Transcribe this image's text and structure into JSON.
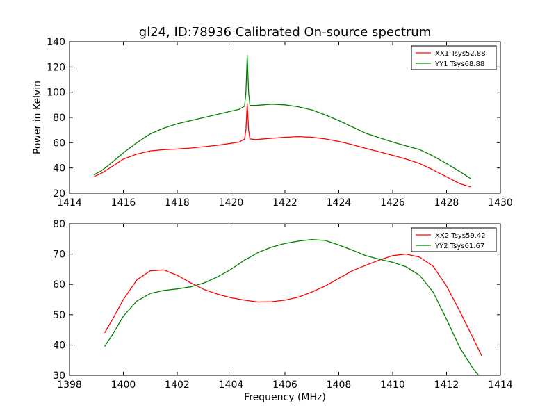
{
  "figure": {
    "title": "gl24, ID:78936 Calibrated On-source spectrum",
    "xlabel": "Frequency (MHz)"
  },
  "chart_data": [
    {
      "type": "line",
      "title": "gl24, ID:78936 Calibrated On-source spectrum",
      "xlabel": "",
      "ylabel": "Power in Kelvin",
      "xlim": [
        1414,
        1430
      ],
      "ylim": [
        20,
        140
      ],
      "x_ticks": [
        1414,
        1416,
        1418,
        1420,
        1422,
        1424,
        1426,
        1428,
        1430
      ],
      "y_ticks": [
        20,
        40,
        60,
        80,
        100,
        120,
        140
      ],
      "grid": false,
      "legend_position": "top-right",
      "series": [
        {
          "name": "XX1 Tsys52.88",
          "color": "#ff0000",
          "x": [
            1414.9,
            1415.2,
            1415.5,
            1416.0,
            1416.5,
            1417.0,
            1417.5,
            1418.0,
            1418.5,
            1419.0,
            1419.5,
            1420.0,
            1420.3,
            1420.5,
            1420.55,
            1420.6,
            1420.65,
            1420.7,
            1420.9,
            1421.5,
            1422.0,
            1422.5,
            1423.0,
            1423.5,
            1424.0,
            1424.5,
            1425.0,
            1425.5,
            1426.0,
            1426.5,
            1427.0,
            1427.5,
            1428.0,
            1428.5,
            1428.9
          ],
          "y": [
            33,
            36,
            40,
            47,
            51,
            53.5,
            54.5,
            55,
            55.8,
            56.8,
            58,
            59.5,
            60.5,
            63,
            70,
            91,
            70,
            63,
            62.5,
            63.5,
            64.3,
            64.8,
            64.3,
            63,
            61,
            58.5,
            55.5,
            52.8,
            50,
            47,
            43.5,
            38.5,
            33,
            27.5,
            25
          ]
        },
        {
          "name": "YY1 Tsys68.88",
          "color": "#008000",
          "x": [
            1414.9,
            1415.2,
            1415.5,
            1416.0,
            1416.5,
            1417.0,
            1417.5,
            1418.0,
            1418.5,
            1419.0,
            1419.5,
            1420.0,
            1420.3,
            1420.5,
            1420.55,
            1420.6,
            1420.65,
            1420.7,
            1420.9,
            1421.5,
            1422.0,
            1422.5,
            1423.0,
            1423.5,
            1424.0,
            1424.5,
            1425.0,
            1425.5,
            1426.0,
            1426.5,
            1427.0,
            1427.5,
            1428.0,
            1428.5,
            1428.9
          ],
          "y": [
            34.5,
            38,
            43,
            52,
            60,
            67,
            71.5,
            75,
            77.5,
            80,
            82.5,
            85,
            86.5,
            89,
            100,
            129,
            100,
            89.5,
            89.5,
            90.5,
            90,
            88.5,
            86,
            82,
            77.5,
            72.5,
            67.5,
            64,
            60.5,
            57.5,
            54.5,
            49.5,
            43.5,
            37,
            31.5
          ]
        }
      ]
    },
    {
      "type": "line",
      "title": "",
      "xlabel": "Frequency (MHz)",
      "ylabel": "",
      "xlim": [
        1398,
        1414
      ],
      "ylim": [
        30,
        80
      ],
      "x_ticks": [
        1398,
        1400,
        1402,
        1404,
        1406,
        1408,
        1410,
        1412,
        1414
      ],
      "y_ticks": [
        30,
        40,
        50,
        60,
        70,
        80
      ],
      "grid": false,
      "legend_position": "top-right",
      "series": [
        {
          "name": "XX2 Tsys59.42",
          "color": "#ff0000",
          "x": [
            1399.3,
            1399.6,
            1400.0,
            1400.5,
            1401.0,
            1401.5,
            1402.0,
            1402.5,
            1403.0,
            1403.5,
            1404.0,
            1404.5,
            1405.0,
            1405.5,
            1406.0,
            1406.5,
            1407.0,
            1407.5,
            1408.0,
            1408.5,
            1409.0,
            1409.5,
            1410.0,
            1410.5,
            1411.0,
            1411.5,
            1412.0,
            1412.5,
            1413.0,
            1413.3
          ],
          "y": [
            44,
            48.5,
            55,
            61.5,
            64.5,
            64.8,
            63,
            60.5,
            58.3,
            56.8,
            55.6,
            54.8,
            54.2,
            54.3,
            54.8,
            55.8,
            57.5,
            59.5,
            62,
            64.5,
            66.3,
            68,
            69.5,
            70,
            69,
            66,
            59.5,
            51,
            42,
            36.5
          ]
        },
        {
          "name": "YY2 Tsys61.67",
          "color": "#008000",
          "x": [
            1399.3,
            1399.6,
            1400.0,
            1400.5,
            1401.0,
            1401.5,
            1402.0,
            1402.5,
            1403.0,
            1403.5,
            1404.0,
            1404.5,
            1405.0,
            1405.5,
            1406.0,
            1406.5,
            1407.0,
            1407.5,
            1408.0,
            1408.5,
            1409.0,
            1409.5,
            1410.0,
            1410.5,
            1411.0,
            1411.5,
            1412.0,
            1412.5,
            1413.0,
            1413.2
          ],
          "y": [
            39.5,
            43.5,
            49.5,
            54.5,
            57,
            58,
            58.5,
            59.2,
            60.5,
            62.5,
            65,
            68,
            70.5,
            72.3,
            73.5,
            74.3,
            74.8,
            74.5,
            73,
            71.3,
            69.5,
            68.3,
            67.3,
            65.8,
            63,
            57.5,
            48.5,
            39,
            32,
            30
          ]
        }
      ]
    }
  ]
}
